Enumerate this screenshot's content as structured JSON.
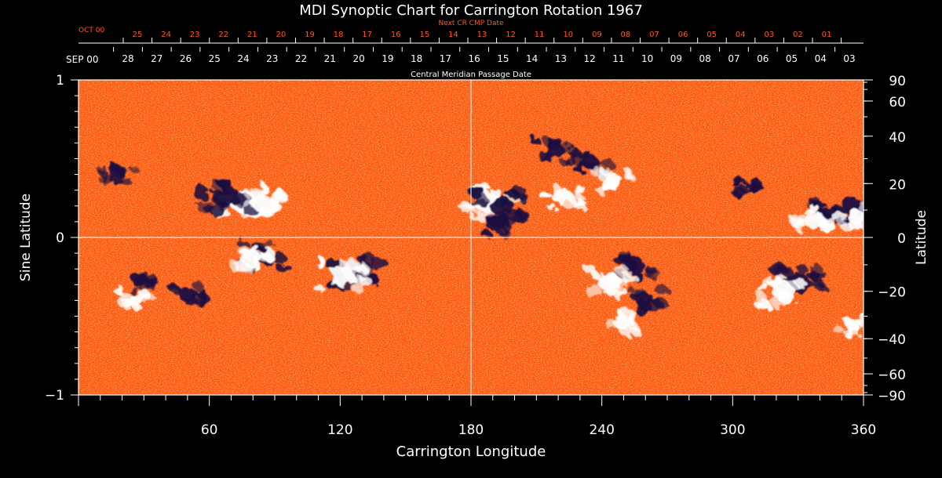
{
  "chart_data": {
    "type": "heatmap",
    "title": "MDI Synoptic Chart for Carrington Rotation 1967",
    "xlabel": "Carrington Longitude",
    "ylabel_left": "Sine Latitude",
    "ylabel_right": "Latitude",
    "xlim": [
      0,
      360
    ],
    "ylim": [
      -1,
      1
    ],
    "x_ticks": [
      60,
      120,
      180,
      240,
      300,
      360
    ],
    "y_ticks_left": [
      "1",
      "0",
      "−1"
    ],
    "y_ticks_right": [
      90,
      60,
      40,
      20,
      0,
      -20,
      -40,
      -60,
      -90
    ],
    "y_tick_labels_right": [
      "90",
      "60",
      "40",
      "20",
      "0",
      "−20",
      "−40",
      "−60",
      "−90"
    ],
    "top_axis_label": "Central Meridian Passage Date",
    "top_axis_month": "SEP 00",
    "top_axis_days": [
      "28",
      "27",
      "26",
      "25",
      "24",
      "23",
      "22",
      "21",
      "20",
      "19",
      "18",
      "17",
      "16",
      "15",
      "14",
      "13",
      "12",
      "11",
      "10",
      "09",
      "08",
      "07",
      "06",
      "05",
      "04",
      "03"
    ],
    "next_axis_label": "Next CR CMP Date",
    "next_axis_month": "OCT 00",
    "next_axis_days": [
      "25",
      "24",
      "23",
      "22",
      "21",
      "20",
      "19",
      "18",
      "17",
      "16",
      "15",
      "14",
      "13",
      "12",
      "11",
      "10",
      "09",
      "08",
      "07",
      "06",
      "05",
      "04",
      "03",
      "02",
      "01"
    ],
    "background_color": "#ff5a14",
    "positive_color": "#ffffff",
    "negative_color": "#1a1040",
    "regions": [
      {
        "lon": 76,
        "lat": 0.22,
        "polarity": "positive",
        "strength": 1.0
      },
      {
        "lon": 68,
        "lat": 0.26,
        "polarity": "negative",
        "strength": 0.9
      },
      {
        "lon": 84,
        "lat": 0.22,
        "polarity": "positive",
        "strength": 0.6
      },
      {
        "lon": 18,
        "lat": 0.42,
        "polarity": "negative",
        "strength": 0.4
      },
      {
        "lon": 85,
        "lat": -0.12,
        "polarity": "negative",
        "strength": 0.6
      },
      {
        "lon": 79,
        "lat": -0.13,
        "polarity": "positive",
        "strength": 0.6
      },
      {
        "lon": 128,
        "lat": -0.22,
        "polarity": "negative",
        "strength": 0.8
      },
      {
        "lon": 121,
        "lat": -0.25,
        "polarity": "positive",
        "strength": 0.8
      },
      {
        "lon": 28,
        "lat": -0.27,
        "polarity": "negative",
        "strength": 0.4
      },
      {
        "lon": 50,
        "lat": -0.36,
        "polarity": "negative",
        "strength": 0.5
      },
      {
        "lon": 25,
        "lat": -0.4,
        "polarity": "positive",
        "strength": 0.4
      },
      {
        "lon": 188,
        "lat": 0.22,
        "polarity": "positive",
        "strength": 0.9
      },
      {
        "lon": 194,
        "lat": 0.2,
        "polarity": "negative",
        "strength": 0.8
      },
      {
        "lon": 191,
        "lat": 0.09,
        "polarity": "negative",
        "strength": 0.5
      },
      {
        "lon": 218,
        "lat": 0.55,
        "polarity": "negative",
        "strength": 0.6
      },
      {
        "lon": 234,
        "lat": 0.48,
        "polarity": "negative",
        "strength": 0.5
      },
      {
        "lon": 222,
        "lat": 0.26,
        "polarity": "positive",
        "strength": 0.6
      },
      {
        "lon": 245,
        "lat": 0.36,
        "polarity": "positive",
        "strength": 0.5
      },
      {
        "lon": 255,
        "lat": -0.18,
        "polarity": "negative",
        "strength": 0.6
      },
      {
        "lon": 243,
        "lat": -0.28,
        "polarity": "positive",
        "strength": 0.7
      },
      {
        "lon": 260,
        "lat": -0.4,
        "polarity": "negative",
        "strength": 0.5
      },
      {
        "lon": 250,
        "lat": -0.55,
        "polarity": "positive",
        "strength": 0.4
      },
      {
        "lon": 330,
        "lat": -0.29,
        "polarity": "negative",
        "strength": 0.8
      },
      {
        "lon": 323,
        "lat": -0.34,
        "polarity": "positive",
        "strength": 0.7
      },
      {
        "lon": 345,
        "lat": 0.15,
        "polarity": "negative",
        "strength": 0.6
      },
      {
        "lon": 338,
        "lat": 0.1,
        "polarity": "positive",
        "strength": 0.6
      },
      {
        "lon": 355,
        "lat": 0.2,
        "polarity": "negative",
        "strength": 0.6
      },
      {
        "lon": 357,
        "lat": 0.13,
        "polarity": "positive",
        "strength": 0.5
      },
      {
        "lon": 310,
        "lat": 0.33,
        "polarity": "negative",
        "strength": 0.4
      },
      {
        "lon": 355,
        "lat": -0.55,
        "polarity": "positive",
        "strength": 0.4
      }
    ]
  }
}
